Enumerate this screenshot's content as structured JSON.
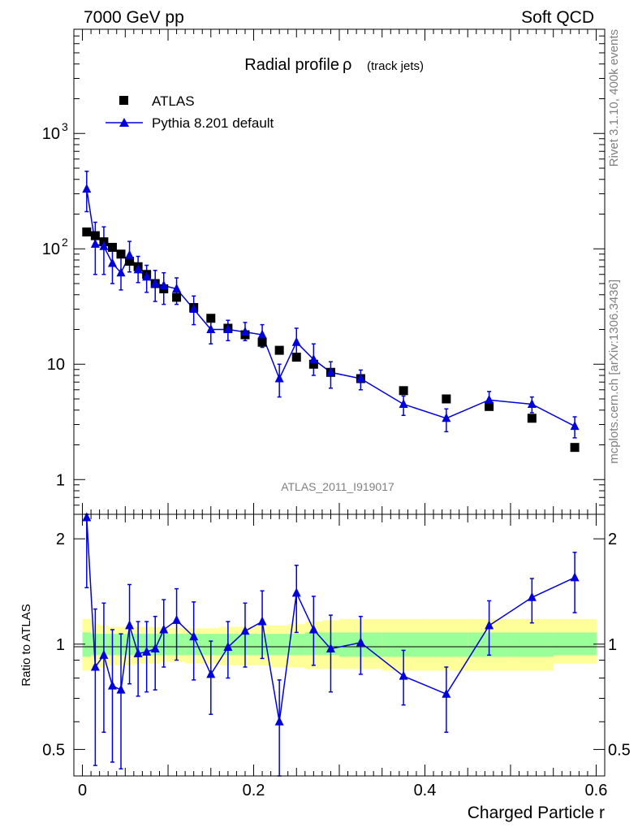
{
  "header": {
    "left": "7000 GeV pp",
    "right": "Soft QCD"
  },
  "side_labels": {
    "rivet": "Rivet 3.1.10,  400k events",
    "mcplots": "mcplots.cern.ch [arXiv:1306.3436]"
  },
  "analysis_label": "ATLAS_2011_I919017",
  "colors": {
    "mc": "#0000dd",
    "data": "#000000",
    "band_inner": "#99ff99",
    "band_outer": "#ffff99"
  },
  "chart_data": [
    {
      "type": "scatter",
      "title": "Radial profile",
      "title_symbol": "ρ",
      "title_suffix": "(track jets)",
      "xlabel": "Charged Particle r",
      "ylabel": "",
      "yscale": "log",
      "xlim": [
        -0.01,
        0.61
      ],
      "ylim": [
        0.5,
        8000
      ],
      "yticks": [
        {
          "value": 1,
          "label": "1"
        },
        {
          "value": 10,
          "label": "10"
        },
        {
          "value": 100,
          "label": "10",
          "sup": "2"
        },
        {
          "value": 1000,
          "label": "10",
          "sup": "3"
        }
      ],
      "legend_position": "top-left",
      "series": [
        {
          "name": "ATLAS",
          "marker": "square",
          "x": [
            0.005,
            0.015,
            0.025,
            0.035,
            0.045,
            0.055,
            0.065,
            0.075,
            0.085,
            0.095,
            0.11,
            0.13,
            0.15,
            0.17,
            0.19,
            0.21,
            0.23,
            0.25,
            0.27,
            0.29,
            0.325,
            0.375,
            0.425,
            0.475,
            0.525,
            0.575
          ],
          "y": [
            140,
            130,
            115,
            103,
            90,
            78,
            70,
            60,
            50,
            45,
            38,
            31,
            25,
            20.5,
            18,
            15.5,
            13.2,
            11.5,
            10,
            8.5,
            7.5,
            5.9,
            5.0,
            4.3,
            3.4,
            1.9
          ]
        },
        {
          "name": "Pythia 8.201 default",
          "marker": "triangle",
          "line": true,
          "x": [
            0.005,
            0.015,
            0.025,
            0.035,
            0.045,
            0.055,
            0.065,
            0.075,
            0.085,
            0.095,
            0.11,
            0.13,
            0.15,
            0.17,
            0.19,
            0.21,
            0.23,
            0.25,
            0.27,
            0.29,
            0.325,
            0.375,
            0.425,
            0.475,
            0.525,
            0.575
          ],
          "y": [
            330,
            110,
            105,
            75,
            62,
            88,
            66,
            57,
            50,
            48,
            45,
            30,
            20,
            20,
            19,
            18,
            7.5,
            15.5,
            11,
            8.5,
            7.5,
            4.5,
            3.4,
            4.9,
            4.5,
            2.9
          ],
          "err_low": [
            120,
            50,
            45,
            25,
            18,
            25,
            15,
            15,
            15,
            15,
            12,
            8,
            5,
            4,
            3,
            4,
            2.3,
            4,
            3,
            2.3,
            1.5,
            0.9,
            0.8,
            0.9,
            0.7,
            0.6
          ],
          "err_high": [
            140,
            60,
            50,
            30,
            25,
            28,
            20,
            15,
            15,
            14,
            11,
            9,
            5,
            4,
            4,
            4,
            2.5,
            5,
            4,
            2,
            1.4,
            0.8,
            0.7,
            0.9,
            0.7,
            0.6
          ]
        }
      ]
    },
    {
      "type": "scatter",
      "title": "",
      "xlabel": "Charged Particle r",
      "ylabel": "Ratio to ATLAS",
      "xlim": [
        -0.01,
        0.61
      ],
      "ylim": [
        0.42,
        2.35
      ],
      "yscale": "log",
      "yticks": [
        {
          "value": 0.5,
          "label": "0.5"
        },
        {
          "value": 1,
          "label": "1"
        },
        {
          "value": 2,
          "label": "2"
        }
      ],
      "xticks": [
        {
          "value": 0,
          "label": "0"
        },
        {
          "value": 0.2,
          "label": "0.2"
        },
        {
          "value": 0.4,
          "label": "0.4"
        },
        {
          "value": 0.6,
          "label": "0.6"
        }
      ],
      "bands": {
        "edges": [
          0,
          0.01,
          0.02,
          0.03,
          0.04,
          0.05,
          0.06,
          0.07,
          0.08,
          0.09,
          0.1,
          0.12,
          0.14,
          0.16,
          0.18,
          0.2,
          0.22,
          0.24,
          0.26,
          0.28,
          0.3,
          0.35,
          0.4,
          0.45,
          0.5,
          0.55,
          0.6
        ],
        "inner_low": [
          0.92,
          0.93,
          0.93,
          0.93,
          0.93,
          0.93,
          0.93,
          0.93,
          0.93,
          0.93,
          0.93,
          0.93,
          0.93,
          0.93,
          0.93,
          0.93,
          0.93,
          0.93,
          0.93,
          0.93,
          0.92,
          0.92,
          0.92,
          0.92,
          0.92,
          0.93
        ],
        "inner_high": [
          1.08,
          1.07,
          1.07,
          1.07,
          1.07,
          1.07,
          1.07,
          1.07,
          1.07,
          1.07,
          1.07,
          1.07,
          1.07,
          1.07,
          1.07,
          1.07,
          1.07,
          1.07,
          1.08,
          1.08,
          1.08,
          1.08,
          1.08,
          1.08,
          1.08,
          1.08
        ],
        "outer_low": [
          0.84,
          0.86,
          0.86,
          0.87,
          0.87,
          0.87,
          0.88,
          0.88,
          0.88,
          0.89,
          0.89,
          0.88,
          0.88,
          0.87,
          0.87,
          0.87,
          0.86,
          0.86,
          0.85,
          0.85,
          0.85,
          0.84,
          0.84,
          0.84,
          0.84,
          0.88
        ],
        "outer_high": [
          1.18,
          1.14,
          1.13,
          1.12,
          1.12,
          1.12,
          1.12,
          1.12,
          1.12,
          1.11,
          1.11,
          1.11,
          1.11,
          1.12,
          1.12,
          1.13,
          1.13,
          1.14,
          1.16,
          1.17,
          1.18,
          1.18,
          1.18,
          1.18,
          1.18,
          1.18
        ]
      },
      "series": [
        {
          "name": "Pythia 8.201 default",
          "marker": "triangle",
          "line": true,
          "x": [
            0.005,
            0.015,
            0.025,
            0.035,
            0.045,
            0.055,
            0.065,
            0.075,
            0.085,
            0.095,
            0.11,
            0.13,
            0.15,
            0.17,
            0.19,
            0.21,
            0.23,
            0.25,
            0.27,
            0.29,
            0.325,
            0.375,
            0.425,
            0.475,
            0.525,
            0.575
          ],
          "y": [
            2.3,
            0.86,
            0.93,
            0.76,
            0.74,
            1.13,
            0.94,
            0.95,
            0.97,
            1.1,
            1.17,
            1.05,
            0.82,
            0.98,
            1.09,
            1.16,
            0.6,
            1.4,
            1.1,
            0.97,
            1.01,
            0.81,
            0.72,
            1.13,
            1.36,
            1.55
          ],
          "err_low": [
            0.85,
            0.41,
            0.37,
            0.3,
            0.3,
            0.36,
            0.23,
            0.22,
            0.23,
            0.24,
            0.27,
            0.26,
            0.19,
            0.18,
            0.23,
            0.25,
            0.24,
            0.32,
            0.23,
            0.24,
            0.19,
            0.14,
            0.16,
            0.2,
            0.21,
            0.32
          ],
          "err_high": [
            0.8,
            0.4,
            0.38,
            0.34,
            0.33,
            0.35,
            0.22,
            0.21,
            0.23,
            0.24,
            0.27,
            0.27,
            0.2,
            0.18,
            0.22,
            0.26,
            0.19,
            0.28,
            0.27,
            0.24,
            0.19,
            0.15,
            0.14,
            0.2,
            0.18,
            0.28
          ]
        }
      ]
    }
  ]
}
